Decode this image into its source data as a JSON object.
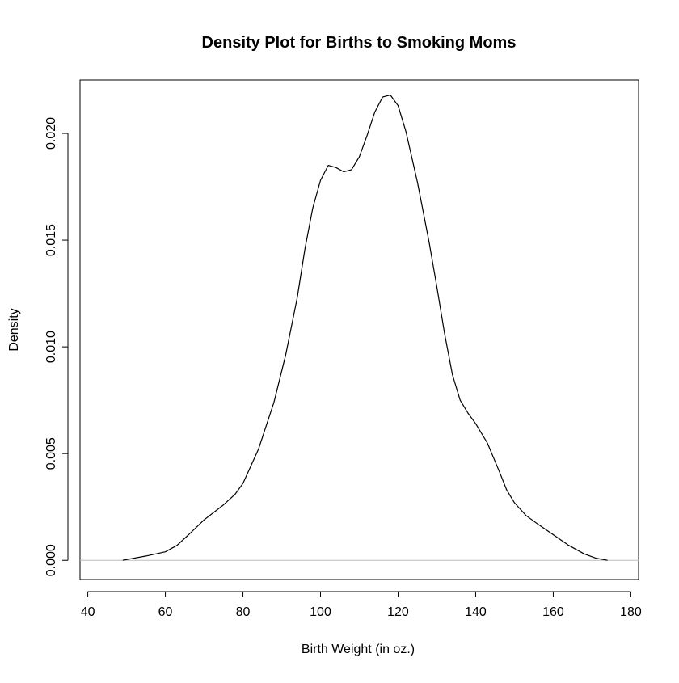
{
  "chart_data": {
    "type": "line",
    "title": "Density Plot for Births to Smoking Moms",
    "xlabel": "Birth Weight (in oz.)",
    "ylabel": "Density",
    "xlim": [
      38,
      182
    ],
    "ylim": [
      -0.0009,
      0.0225
    ],
    "x_ticks": [
      40,
      60,
      80,
      100,
      120,
      140,
      160,
      180
    ],
    "x_tick_labels": [
      "40",
      "60",
      "80",
      "100",
      "120",
      "140",
      "160",
      "180"
    ],
    "y_ticks": [
      0,
      0.005,
      0.01,
      0.015,
      0.02
    ],
    "y_tick_labels": [
      "0.000",
      "0.005",
      "0.010",
      "0.015",
      "0.020"
    ],
    "baseline": 0,
    "grid": false,
    "series": [
      {
        "x": [
          49,
          55,
          60,
          63,
          66,
          70,
          75,
          78,
          80,
          84,
          88,
          91,
          94,
          96,
          98,
          100,
          102,
          104,
          106,
          108,
          110,
          112,
          114,
          116,
          118,
          120,
          122,
          125,
          128,
          130,
          132,
          134,
          136,
          138,
          140,
          143,
          146,
          148,
          150,
          153,
          156,
          160,
          164,
          168,
          171,
          174
        ],
        "y": [
          0,
          0.0002,
          0.0004,
          0.0007,
          0.0012,
          0.0019,
          0.0026,
          0.0031,
          0.0036,
          0.0052,
          0.0074,
          0.0096,
          0.0123,
          0.0146,
          0.0165,
          0.0178,
          0.0185,
          0.0184,
          0.0182,
          0.0183,
          0.0189,
          0.0199,
          0.021,
          0.0217,
          0.0218,
          0.0213,
          0.0201,
          0.0177,
          0.0149,
          0.0128,
          0.0106,
          0.0087,
          0.0075,
          0.0069,
          0.0064,
          0.0055,
          0.0042,
          0.0033,
          0.0027,
          0.0021,
          0.0017,
          0.0012,
          0.0007,
          0.0003,
          0.0001,
          0
        ]
      }
    ],
    "colors": {
      "line": "#000000",
      "baseline": "#bebebe",
      "axis": "#000000",
      "background": "#ffffff"
    }
  }
}
